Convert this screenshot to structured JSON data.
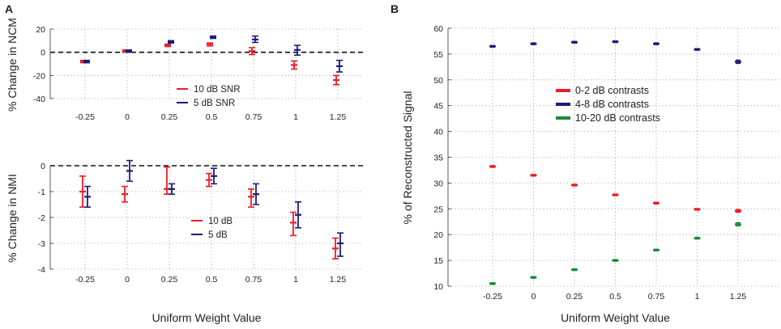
{
  "chart_data": [
    {
      "panel": "A",
      "type": "errorbar",
      "title": "",
      "xlabel": "",
      "ylabel": "% Change in NCM",
      "x": [
        -0.25,
        0,
        0.25,
        0.5,
        0.75,
        1,
        1.25
      ],
      "x_tick_labels": [
        "-0.25",
        "0",
        "0.25",
        "0.5",
        "0.75",
        "1",
        "1.25"
      ],
      "ylim": [
        -40,
        20
      ],
      "y_ticks": [
        20,
        0,
        -20,
        -40
      ],
      "y_tick_labels": [
        "20",
        "0",
        "-20",
        "-40"
      ],
      "grid": true,
      "reference_line": 0,
      "series": [
        {
          "name": "10 dB SNR",
          "color": "#ee1c25",
          "values": [
            -8,
            1,
            6,
            7,
            1,
            -11,
            -24
          ],
          "lower": [
            -9,
            0,
            5,
            5.5,
            -2,
            -14.5,
            -28
          ],
          "upper": [
            -7,
            2,
            7,
            8,
            4,
            -7.5,
            -20
          ]
        },
        {
          "name": "5 dB SNR",
          "color": "#1c1c7c",
          "values": [
            -8,
            1,
            9,
            13,
            11,
            2,
            -12
          ],
          "lower": [
            -9,
            0,
            8,
            12,
            8.5,
            -2.5,
            -17
          ],
          "upper": [
            -7,
            2,
            10,
            14,
            14,
            6,
            -7
          ]
        }
      ]
    },
    {
      "panel": "A",
      "type": "errorbar",
      "title": "",
      "xlabel": "Uniform Weight Value",
      "ylabel": "% Change in NMI",
      "x": [
        -0.25,
        0,
        0.25,
        0.5,
        0.75,
        1,
        1.25
      ],
      "x_tick_labels": [
        "-0.25",
        "0",
        "0.25",
        "0.5",
        "0.75",
        "1",
        "1.25"
      ],
      "ylim": [
        -4,
        0
      ],
      "y_ticks": [
        0,
        -1,
        -2,
        -3,
        -4
      ],
      "y_tick_labels": [
        "0",
        "-1",
        "-2",
        "-3",
        "-4"
      ],
      "grid": true,
      "reference_line": 0,
      "series": [
        {
          "name": "10 dB",
          "color": "#ee1c25",
          "values": [
            -1,
            -1.1,
            -0.9,
            -0.55,
            -1.2,
            -2.2,
            -3.2
          ],
          "lower": [
            -1.6,
            -1.4,
            -1.1,
            -0.8,
            -1.6,
            -2.7,
            -3.6
          ],
          "upper": [
            -0.4,
            -0.8,
            -0.05,
            -0.3,
            -0.9,
            -1.8,
            -2.8
          ]
        },
        {
          "name": "5 dB",
          "color": "#1c1c7c",
          "values": [
            -1.2,
            -0.2,
            -0.9,
            -0.4,
            -1.1,
            -1.9,
            -3.0
          ],
          "lower": [
            -1.6,
            -0.6,
            -1.1,
            -0.7,
            -1.5,
            -2.4,
            -3.5
          ],
          "upper": [
            -0.8,
            0.2,
            -0.7,
            -0.1,
            -0.7,
            -1.4,
            -2.6
          ]
        }
      ]
    },
    {
      "panel": "B",
      "type": "errorbar",
      "title": "",
      "xlabel": "Uniform Weight Value",
      "ylabel": "% of Reconstructed Signal",
      "x": [
        -0.25,
        0,
        0.25,
        0.5,
        0.75,
        1,
        1.25
      ],
      "x_tick_labels": [
        "-0.25",
        "0",
        "0.25",
        "0.5",
        "0.75",
        "1",
        "1.25"
      ],
      "xlim": [
        -0.5,
        1.5
      ],
      "ylim": [
        10,
        60
      ],
      "y_ticks": [
        60,
        55,
        50,
        45,
        40,
        35,
        30,
        25,
        20,
        15,
        10
      ],
      "y_tick_labels": [
        "60",
        "55",
        "50",
        "45",
        "40",
        "35",
        "30",
        "25",
        "20",
        "15",
        "10"
      ],
      "grid": true,
      "series": [
        {
          "name": "0-2 dB contrasts",
          "color": "#ee1c25",
          "values": [
            33.2,
            31.5,
            29.6,
            27.7,
            26.1,
            24.9,
            24.6
          ],
          "err": [
            0.15,
            0.15,
            0.15,
            0.15,
            0.15,
            0.15,
            0.25
          ]
        },
        {
          "name": "4-8 dB contrasts",
          "color": "#1c1c7c",
          "values": [
            56.5,
            57.0,
            57.3,
            57.4,
            57.0,
            55.9,
            53.5
          ],
          "err": [
            0.15,
            0.15,
            0.15,
            0.15,
            0.15,
            0.15,
            0.3
          ]
        },
        {
          "name": "10-20 dB contrasts",
          "color": "#1a8a3c",
          "values": [
            10.5,
            11.7,
            13.2,
            15.0,
            17.0,
            19.3,
            22.0
          ],
          "err": [
            0.15,
            0.15,
            0.15,
            0.15,
            0.15,
            0.15,
            0.3
          ]
        }
      ]
    }
  ],
  "panel_labels": {
    "a": "A",
    "b": "B"
  }
}
